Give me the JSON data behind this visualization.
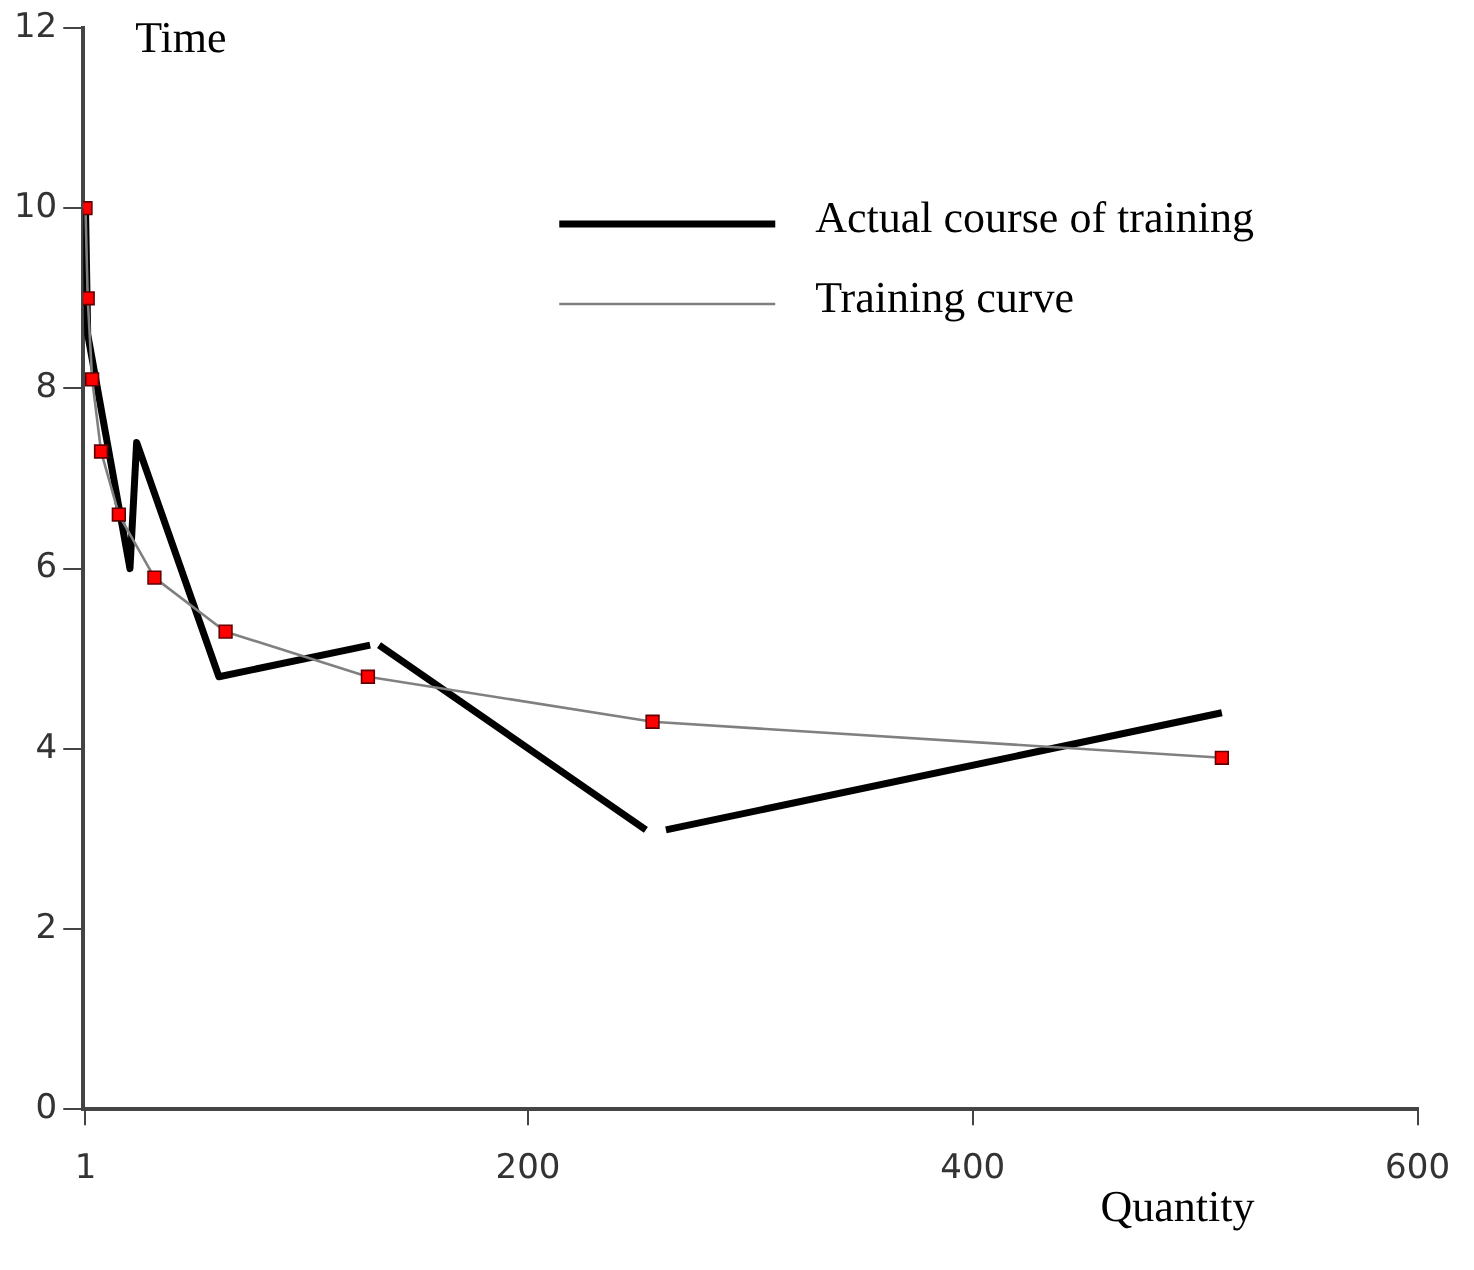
{
  "chart_data": {
    "type": "line",
    "xlabel": "Quantity",
    "ylabel": "Time",
    "xlim": [
      0,
      600
    ],
    "xticks": [
      1,
      200,
      400,
      600
    ],
    "ylim": [
      0,
      12
    ],
    "yticks": [
      0,
      2,
      4,
      6,
      8,
      10,
      12
    ],
    "grid": false,
    "legend": "top right",
    "series": [
      {
        "name": "Actual course of training",
        "color": "#000000",
        "marker": "none",
        "x": [
          1,
          2,
          21,
          24,
          61,
          129,
          131,
          133,
          253,
          257,
          262,
          512
        ],
        "values": [
          10,
          8.6,
          6.0,
          7.4,
          4.8,
          5.15,
          null,
          5.15,
          3.1,
          null,
          3.1,
          4.4
        ]
      },
      {
        "name": "Training curve",
        "color": "#808080",
        "marker": "square",
        "colors": [
          "#ff0000",
          "#ff0000",
          "#ff0000",
          "#ff0000",
          "#ff0000",
          "#ff0000",
          "#ff0000",
          "#ff0000",
          "#ff0000",
          "#ff0000"
        ],
        "x": [
          1,
          2,
          4,
          8,
          16,
          32,
          64,
          128,
          256,
          512
        ],
        "values": [
          10,
          9,
          8.1,
          7.3,
          6.6,
          5.9,
          5.3,
          4.8,
          4.3,
          3.9
        ]
      }
    ]
  }
}
